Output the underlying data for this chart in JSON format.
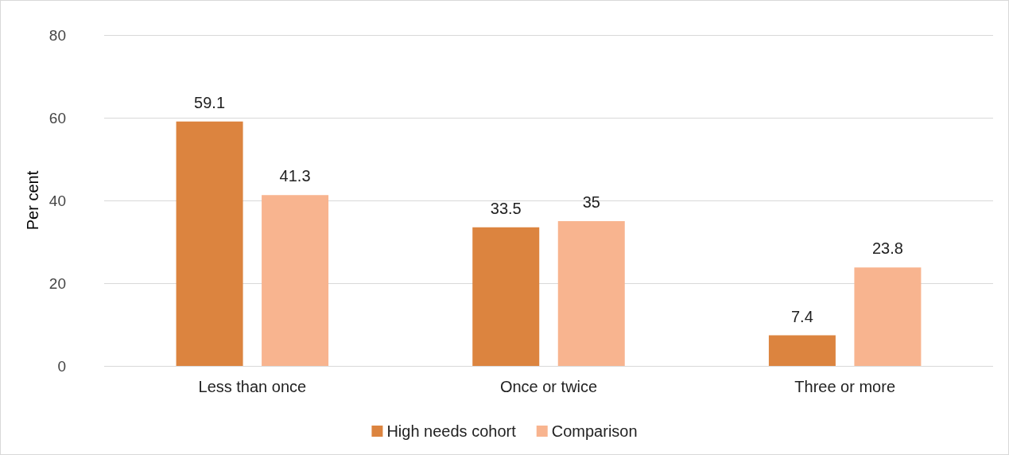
{
  "chart_data": {
    "type": "bar",
    "ylabel": "Per cent",
    "categories": [
      "Less than once",
      "Once or twice",
      "Three or more"
    ],
    "series": [
      {
        "name": "High needs cohort",
        "color": "#dc843f",
        "values": [
          59.1,
          33.5,
          7.4
        ]
      },
      {
        "name": "Comparison",
        "color": "#f8b48f",
        "values": [
          41.3,
          35,
          23.8
        ]
      }
    ],
    "ylim": [
      0,
      80
    ],
    "yticks": [
      0,
      20,
      40,
      60,
      80
    ],
    "grid": "y",
    "legend": "bottom",
    "data_labels": true
  }
}
